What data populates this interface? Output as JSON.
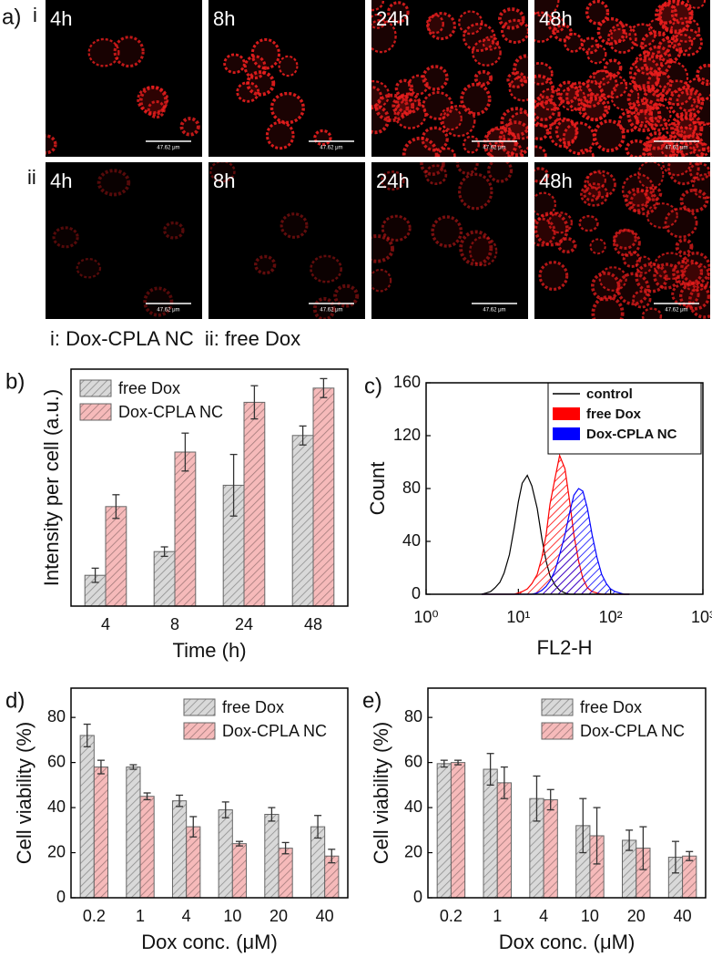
{
  "figure_a": {
    "label": "a)",
    "rows": [
      {
        "label": "i",
        "images": [
          "4h",
          "8h",
          "24h",
          "48h"
        ]
      },
      {
        "label": "ii",
        "images": [
          "4h",
          "8h",
          "24h",
          "48h"
        ]
      }
    ],
    "scale_bar": "47.62 μm",
    "caption": "i: Dox-CPLA NC  ii: free Dox"
  },
  "chart_data": [
    {
      "type": "bar",
      "label": "b)",
      "x_label": "Time (h)",
      "y_label": "Intensity per cell (a.u.)",
      "categories": [
        "4",
        "8",
        "24",
        "48"
      ],
      "ylim": [
        0,
        100
      ],
      "legend": "upper left",
      "series": [
        {
          "name": "free Dox",
          "color": "#d9d9d9",
          "values": [
            13,
            23,
            51,
            72
          ],
          "errors": [
            3,
            2,
            13,
            4
          ]
        },
        {
          "name": "Dox-CPLA NC",
          "color": "#f6baba",
          "values": [
            42,
            65,
            86,
            92
          ],
          "errors": [
            5,
            8,
            7,
            4
          ]
        }
      ]
    },
    {
      "type": "line",
      "label": "c)",
      "x_label": "FL2-H",
      "y_label": "Count",
      "log_x": true,
      "xlim": [
        1,
        1000
      ],
      "xticks": [
        {
          "value": 1,
          "label": "10⁰"
        },
        {
          "value": 10,
          "label": "10¹"
        },
        {
          "value": 100,
          "label": "10²"
        },
        {
          "value": 1000,
          "label": "10³"
        }
      ],
      "ylim": [
        0,
        160
      ],
      "yticks": [
        0,
        40,
        80,
        120,
        160
      ],
      "legend": "upper right",
      "x": [
        4,
        4.5,
        5,
        5.6,
        6.3,
        7,
        8,
        9,
        10,
        11,
        12.5,
        14,
        16,
        18,
        20,
        22,
        25,
        28,
        32,
        36,
        40,
        45,
        50,
        56,
        63,
        71,
        80,
        90,
        100,
        112,
        125,
        140,
        160
      ],
      "series": [
        {
          "name": "control",
          "color": "#000000",
          "hatched": false,
          "values": [
            0,
            1,
            2,
            5,
            9,
            16,
            30,
            50,
            70,
            84,
            90,
            82,
            65,
            42,
            25,
            14,
            7,
            3,
            1,
            0,
            0,
            0,
            0,
            0,
            0,
            0,
            0,
            0,
            0,
            0,
            0,
            0,
            0
          ]
        },
        {
          "name": "free Dox",
          "color": "#ff0000",
          "hatched": true,
          "values": [
            0,
            0,
            0,
            0,
            0,
            0,
            0,
            0,
            1,
            2,
            4,
            8,
            15,
            28,
            45,
            68,
            88,
            105,
            95,
            70,
            45,
            25,
            12,
            5,
            2,
            1,
            0,
            0,
            0,
            0,
            0,
            0,
            0
          ]
        },
        {
          "name": "Dox-CPLA NC",
          "color": "#0000ff",
          "hatched": true,
          "values": [
            0,
            0,
            0,
            0,
            0,
            0,
            0,
            0,
            0,
            0,
            0,
            0,
            1,
            3,
            6,
            10,
            18,
            30,
            45,
            62,
            75,
            80,
            78,
            65,
            45,
            28,
            15,
            8,
            4,
            2,
            1,
            0,
            0
          ]
        }
      ]
    },
    {
      "type": "bar",
      "label": "d)",
      "x_label": "Dox conc. (μM)",
      "y_label": "Cell viability (%)",
      "categories": [
        "0.2",
        "1",
        "4",
        "10",
        "20",
        "40"
      ],
      "ylim": [
        0,
        93
      ],
      "yticks": [
        0,
        20,
        40,
        60,
        80
      ],
      "legend": "upper right",
      "series": [
        {
          "name": "free Dox",
          "color": "#d9d9d9",
          "values": [
            72,
            58,
            43,
            39,
            37,
            31.5
          ],
          "errors": [
            5,
            1,
            2.5,
            3.5,
            3,
            5
          ]
        },
        {
          "name": "Dox-CPLA NC",
          "color": "#f6baba",
          "values": [
            58,
            45,
            31.5,
            24,
            22,
            18.5
          ],
          "errors": [
            3,
            1.5,
            4.5,
            1,
            2.5,
            3
          ]
        }
      ]
    },
    {
      "type": "bar",
      "label": "e)",
      "x_label": "Dox conc. (μM)",
      "y_label": "Cell viability (%)",
      "categories": [
        "0.2",
        "1",
        "4",
        "10",
        "20",
        "40"
      ],
      "ylim": [
        0,
        93
      ],
      "yticks": [
        0,
        20,
        40,
        60,
        80
      ],
      "legend": "upper right",
      "series": [
        {
          "name": "free Dox",
          "color": "#d9d9d9",
          "values": [
            59.5,
            57,
            44,
            32,
            25.5,
            18
          ],
          "errors": [
            1.5,
            7,
            10,
            12,
            4.5,
            7
          ]
        },
        {
          "name": "Dox-CPLA NC",
          "color": "#f6baba",
          "values": [
            60,
            51,
            43.5,
            27.5,
            22,
            18.5
          ],
          "errors": [
            1,
            7,
            4.5,
            12.5,
            9.5,
            2
          ]
        }
      ]
    }
  ]
}
